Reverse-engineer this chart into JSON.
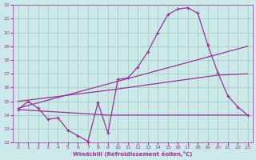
{
  "xlabel": "Windchill (Refroidissement éolien,°C)",
  "xlim": [
    0,
    23
  ],
  "ylim": [
    12,
    22
  ],
  "yticks": [
    12,
    13,
    14,
    15,
    16,
    17,
    18,
    19,
    20,
    21,
    22
  ],
  "xticks": [
    0,
    1,
    2,
    3,
    4,
    5,
    6,
    7,
    8,
    9,
    10,
    11,
    12,
    13,
    14,
    15,
    16,
    17,
    18,
    19,
    20,
    21,
    22,
    23
  ],
  "bg_color": "#cce8e8",
  "line_color": "#993399",
  "grid_color": "#99ccbb",
  "line1_x": [
    0,
    1,
    2,
    3,
    4,
    5,
    6,
    7,
    8,
    9,
    10,
    11,
    12,
    13,
    14,
    15,
    16,
    17,
    18,
    19,
    20,
    21,
    22,
    23
  ],
  "line1_y": [
    14.4,
    15.0,
    14.5,
    13.7,
    13.8,
    12.9,
    12.5,
    12.1,
    14.9,
    12.7,
    16.6,
    16.7,
    17.5,
    18.6,
    20.0,
    21.3,
    21.7,
    21.8,
    21.4,
    19.1,
    17.1,
    15.4,
    14.6,
    14.0
  ],
  "line2_x": [
    0,
    23
  ],
  "line2_y": [
    14.5,
    19.0
  ],
  "line3_x": [
    0,
    9,
    20,
    23
  ],
  "line3_y": [
    15.0,
    15.8,
    16.9,
    17.0
  ],
  "line4_x": [
    0,
    9,
    19,
    20,
    21,
    22,
    23
  ],
  "line4_y": [
    14.4,
    14.0,
    14.0,
    14.0,
    14.0,
    14.0,
    14.0
  ]
}
